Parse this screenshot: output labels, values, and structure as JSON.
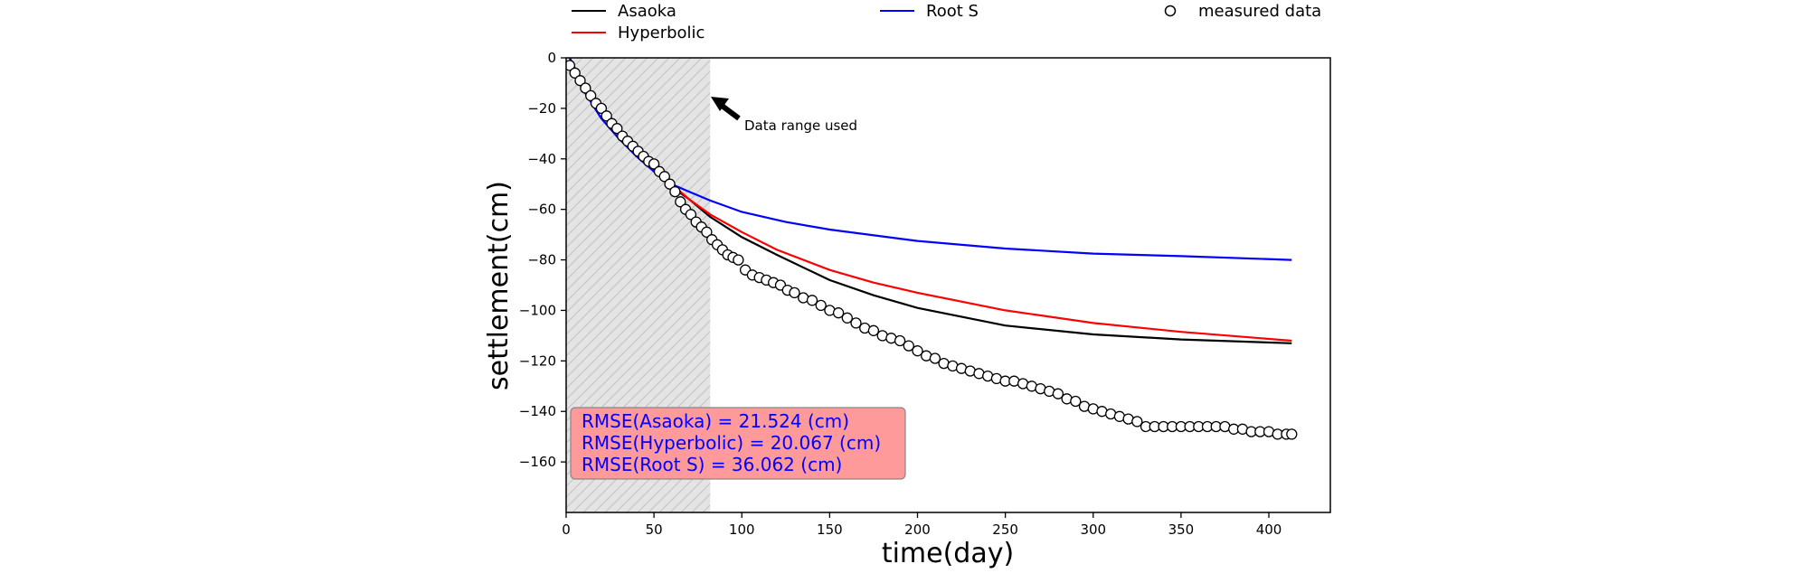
{
  "chart_data": {
    "type": "line",
    "xlabel": "time(day)",
    "ylabel": "settlement(cm)",
    "xlim": [
      0,
      435
    ],
    "ylim": [
      -180,
      0
    ],
    "xticks": [
      0,
      50,
      100,
      150,
      200,
      250,
      300,
      350,
      400
    ],
    "yticks": [
      0,
      -20,
      -40,
      -60,
      -80,
      -100,
      -120,
      -140,
      -160
    ],
    "grid": false,
    "legend_position": "top",
    "legend": [
      {
        "label": "Asaoka",
        "kind": "line",
        "color": "#000000"
      },
      {
        "label": "Hyperbolic",
        "kind": "line",
        "color": "#ff0000"
      },
      {
        "label": "Root S",
        "kind": "line",
        "color": "#0000ff"
      },
      {
        "label": "measured data",
        "kind": "marker",
        "color": "#000000"
      }
    ],
    "data_range": {
      "x": [
        0,
        82
      ],
      "annotation": "Data range used"
    },
    "rmse_box": {
      "lines": [
        "RMSE(Asaoka) = 21.524 (cm)",
        "RMSE(Hyperbolic) = 20.067 (cm)",
        "RMSE(Root S) = 36.062 (cm)"
      ],
      "fill": "#ff9a9a",
      "text_color": "#0000ff"
    },
    "series": [
      {
        "name": "Asaoka",
        "color": "#000000",
        "x": [
          2,
          10,
          20,
          30,
          40,
          50,
          60,
          70,
          82,
          100,
          120,
          150,
          175,
          200,
          250,
          300,
          350,
          413
        ],
        "y": [
          0,
          -11,
          -20,
          -30,
          -37.5,
          -45,
          -51,
          -56,
          -63,
          -71,
          -78,
          -88,
          -94,
          -99,
          -106,
          -109.5,
          -111.5,
          -113
        ]
      },
      {
        "name": "Hyperbolic",
        "color": "#ff0000",
        "x": [
          2,
          10,
          20,
          30,
          40,
          50,
          60,
          70,
          82,
          100,
          120,
          150,
          175,
          200,
          250,
          300,
          350,
          413
        ],
        "y": [
          0,
          -11,
          -20,
          -29,
          -37,
          -44,
          -50,
          -56,
          -62,
          -69,
          -76,
          -84,
          -89,
          -93,
          -100,
          -105,
          -108.5,
          -112
        ]
      },
      {
        "name": "Root S",
        "color": "#0000ff",
        "x": [
          2,
          10,
          20,
          30,
          40,
          50,
          60,
          70,
          82,
          100,
          125,
          150,
          200,
          250,
          300,
          350,
          413
        ],
        "y": [
          0,
          -13,
          -24,
          -32,
          -39,
          -45,
          -50,
          -53,
          -56.5,
          -61,
          -65,
          -68,
          -72.5,
          -75.5,
          -77.5,
          -78.5,
          -80
        ]
      },
      {
        "name": "measured data",
        "color": "#000000",
        "x": [
          2,
          5,
          8,
          11,
          14,
          17,
          20,
          23,
          26,
          29,
          32,
          35,
          38,
          41,
          44,
          47,
          50,
          53,
          56,
          59,
          62,
          65,
          68,
          71,
          74,
          77,
          80,
          83,
          86,
          89,
          92,
          95,
          98,
          102,
          106,
          110,
          114,
          118,
          122,
          126,
          130,
          135,
          140,
          145,
          150,
          155,
          160,
          165,
          170,
          175,
          180,
          185,
          190,
          195,
          200,
          205,
          210,
          215,
          220,
          225,
          230,
          235,
          240,
          245,
          250,
          255,
          260,
          265,
          270,
          275,
          280,
          285,
          290,
          295,
          300,
          305,
          310,
          315,
          320,
          325,
          330,
          335,
          340,
          345,
          350,
          355,
          360,
          365,
          370,
          375,
          380,
          385,
          390,
          395,
          400,
          405,
          410,
          413
        ],
        "y": [
          -3,
          -6,
          -9,
          -12,
          -15,
          -18,
          -20,
          -23,
          -26,
          -28,
          -31,
          -33,
          -35,
          -37,
          -39,
          -41,
          -42,
          -45,
          -47,
          -50,
          -53,
          -57,
          -60,
          -62,
          -65,
          -67,
          -69,
          -72,
          -74,
          -76,
          -78,
          -79,
          -80,
          -84,
          -86,
          -87,
          -88,
          -89,
          -90,
          -92,
          -93,
          -95,
          -96,
          -98,
          -100,
          -101,
          -103,
          -105,
          -107,
          -108,
          -110,
          -111,
          -112,
          -114,
          -116,
          -118,
          -119,
          -121,
          -122,
          -123,
          -124,
          -125,
          -126,
          -127,
          -128,
          -128,
          -129,
          -130,
          -131,
          -132,
          -133,
          -135,
          -136,
          -138,
          -139,
          -140,
          -141,
          -142,
          -143,
          -144,
          -146,
          -146,
          -146,
          -146,
          -146,
          -146,
          -146,
          -146,
          -146,
          -146,
          -147,
          -147,
          -148,
          -148,
          -148,
          -149,
          -149,
          -149
        ]
      }
    ]
  }
}
